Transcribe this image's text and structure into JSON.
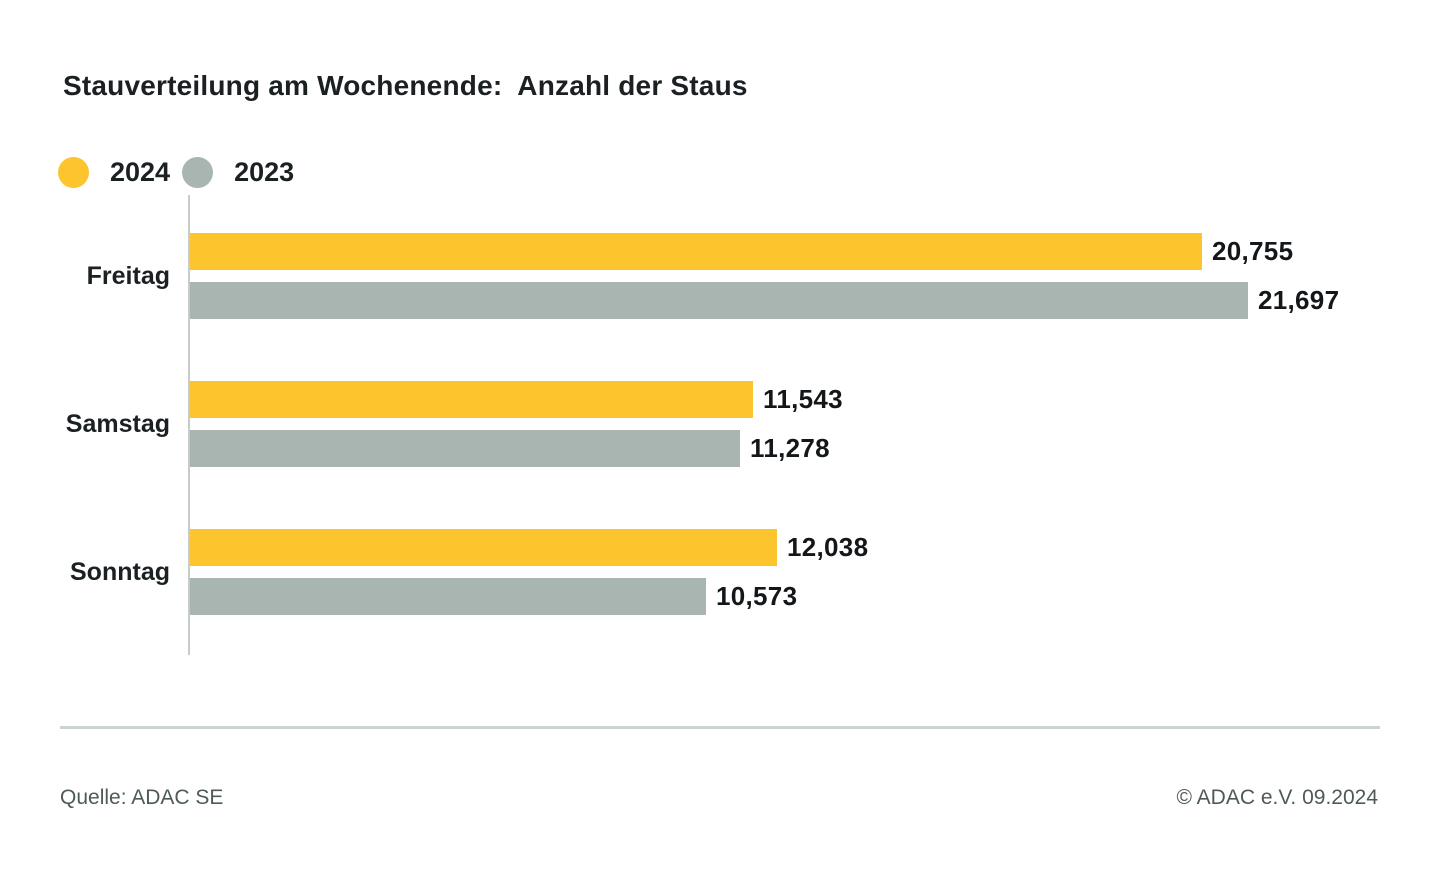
{
  "title": "Stauverteilung am Wochenende:  Anzahl der Staus",
  "legend": [
    {
      "label": "2024",
      "color": "#fcc52d"
    },
    {
      "label": "2023",
      "color": "#a8b5b1"
    }
  ],
  "chart_data": {
    "type": "bar",
    "orientation": "horizontal",
    "title": "Stauverteilung am Wochenende: Anzahl der Staus",
    "categories": [
      "Freitag",
      "Samstag",
      "Sonntag"
    ],
    "series": [
      {
        "name": "2024",
        "color": "#fcc52d",
        "values": [
          20755,
          11543,
          12038
        ],
        "labels": [
          "20,755",
          "11,543",
          "12,038"
        ]
      },
      {
        "name": "2023",
        "color": "#a8b5b1",
        "values": [
          21697,
          11278,
          10573
        ],
        "labels": [
          "21,697",
          "11,278",
          "10,573"
        ]
      }
    ],
    "xlim": [
      0,
      21697
    ],
    "xlabel": "",
    "ylabel": "",
    "grid": false,
    "legend_position": "top-left",
    "axis_color": "#c7cbca"
  },
  "footer": {
    "source": "Quelle: ADAC SE",
    "copyright": "© ADAC e.V. 09.2024"
  }
}
